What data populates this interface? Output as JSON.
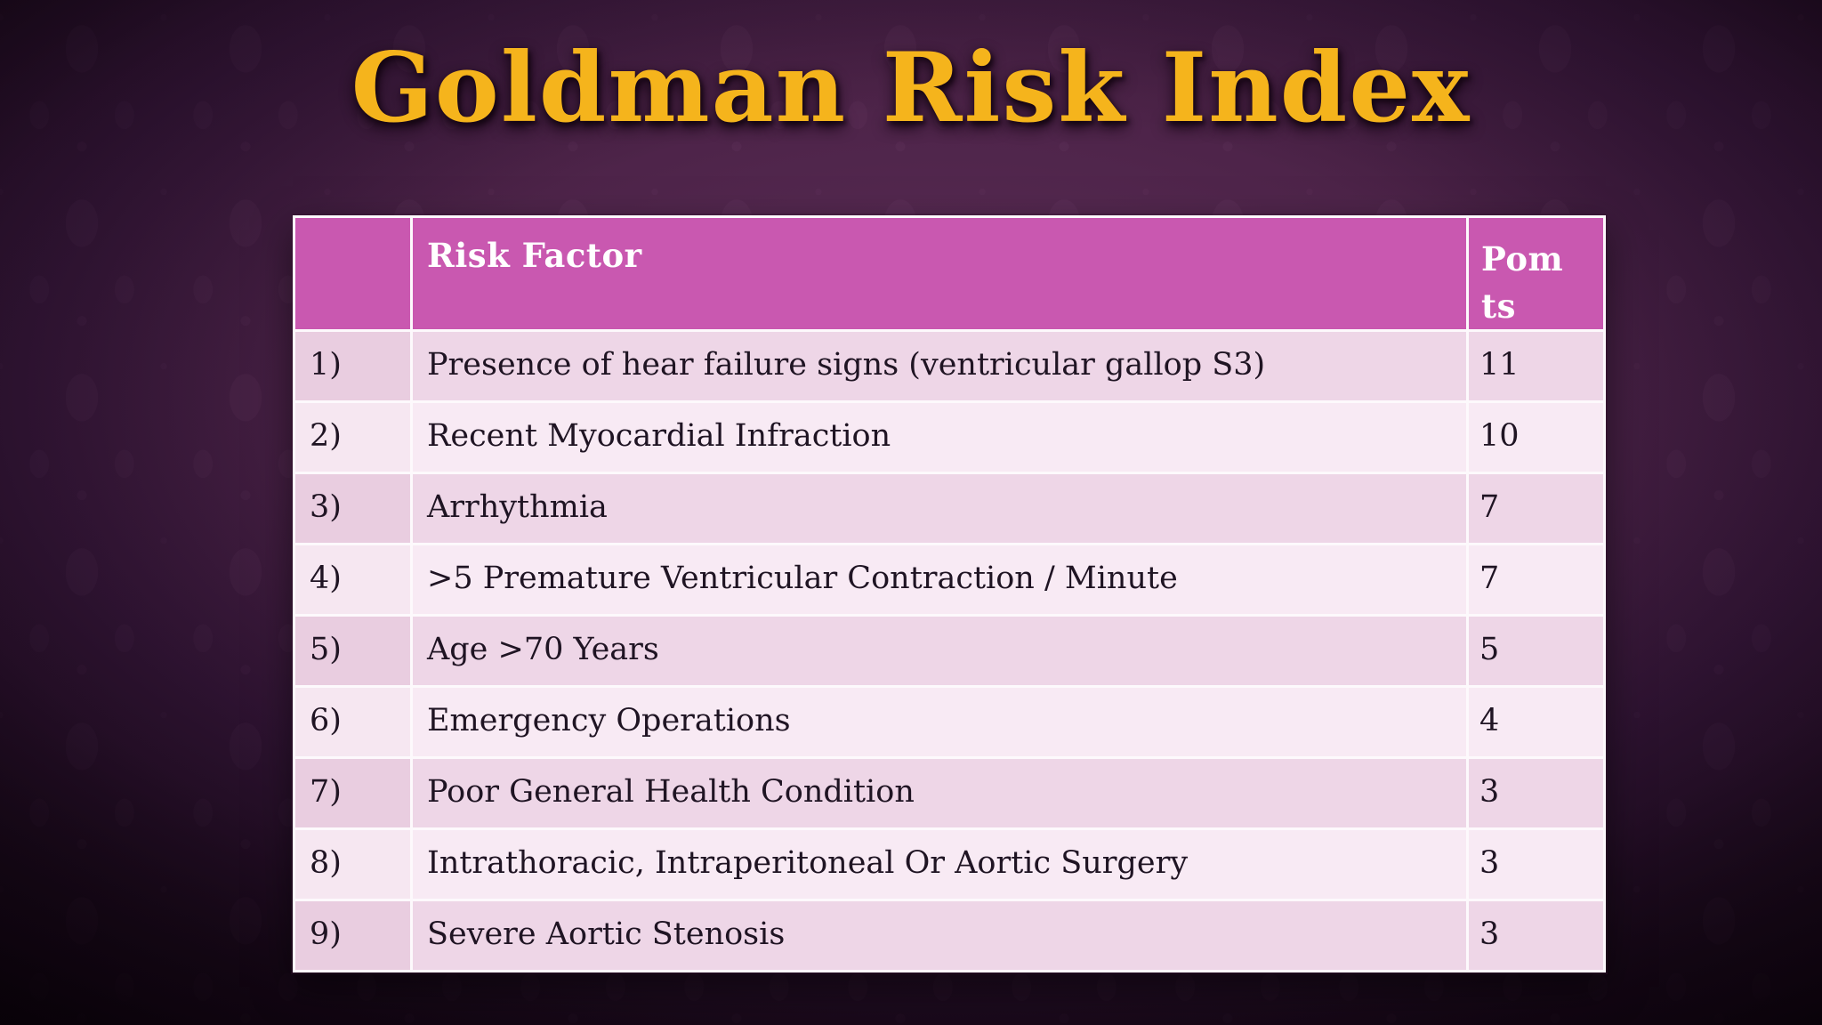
{
  "slide": {
    "title": "Goldman Risk Index"
  },
  "table": {
    "headers": {
      "index": "",
      "risk_factor": "Risk Factor",
      "points": "Pom\nts"
    },
    "rows": [
      {
        "num": "1)",
        "factor": "Presence of hear failure signs (ventricular gallop S3)",
        "points": "11"
      },
      {
        "num": "2)",
        "factor": "Recent Myocardial Infraction",
        "points": "10"
      },
      {
        "num": "3)",
        "factor": "Arrhythmia",
        "points": "7"
      },
      {
        "num": "4)",
        "factor": ">5 Premature Ventricular Contraction / Minute",
        "points": "7"
      },
      {
        "num": "5)",
        "factor": "Age >70 Years",
        "points": "5"
      },
      {
        "num": "6)",
        "factor": "Emergency Operations",
        "points": "4"
      },
      {
        "num": "7)",
        "factor": "Poor General Health Condition",
        "points": "3"
      },
      {
        "num": "8)",
        "factor": "Intrathoracic, Intraperitoneal Or Aortic Surgery",
        "points": "3"
      },
      {
        "num": "9)",
        "factor": "Severe Aortic Stenosis",
        "points": "3"
      }
    ]
  },
  "theme": {
    "title_color": "#F5B41C",
    "header_bg": "#C958B0",
    "header_text": "#FFFFFF",
    "row_odd_bg": "#EED6E7",
    "row_odd_num_bg": "#E9CDE0",
    "row_even_bg": "#F8EAF4",
    "row_even_num_bg": "#F6E7F1",
    "table_border": "#FDF9FC",
    "body_text": "#1F1423",
    "background_center": "#5D2E58",
    "background_edge": "#130613"
  }
}
